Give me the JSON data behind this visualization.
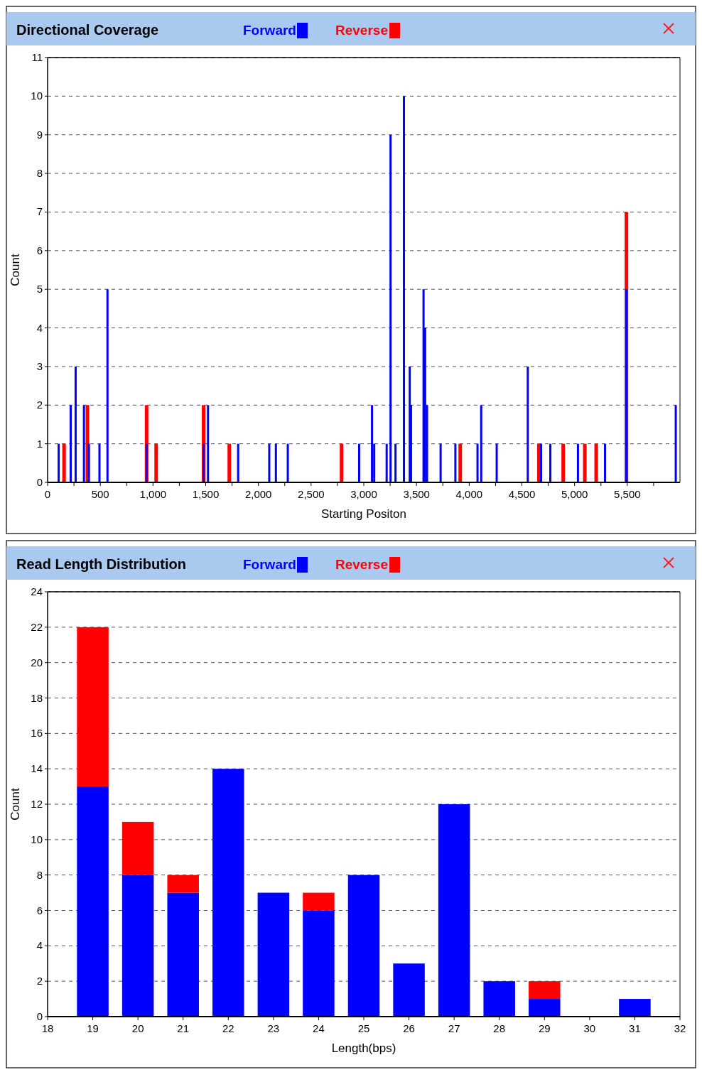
{
  "chart_data": [
    {
      "type": "bar",
      "title": "Directional Coverage",
      "xlabel": "Starting Positon",
      "ylabel": "Count",
      "legend": "top",
      "grid": "y",
      "xlim": [
        0,
        6000
      ],
      "xticks": [
        0,
        {
          "value": 250,
          "label": null
        },
        500,
        {
          "value": 750,
          "label": null
        },
        {
          "value": 1000,
          "label": "1,000"
        },
        {
          "value": 1250,
          "label": null
        },
        {
          "value": 1500,
          "label": "1,500"
        },
        {
          "value": 1750,
          "label": null
        },
        {
          "value": 2000,
          "label": "2,000"
        },
        {
          "value": 2250,
          "label": null
        },
        {
          "value": 2500,
          "label": "2,500"
        },
        {
          "value": 2750,
          "label": null
        },
        {
          "value": 3000,
          "label": "3,000"
        },
        {
          "value": 3250,
          "label": null
        },
        {
          "value": 3500,
          "label": "3,500"
        },
        {
          "value": 3750,
          "label": null
        },
        {
          "value": 4000,
          "label": "4,000"
        },
        {
          "value": 4250,
          "label": null
        },
        {
          "value": 4500,
          "label": "4,500"
        },
        {
          "value": 4750,
          "label": null
        },
        {
          "value": 5000,
          "label": "5,000"
        },
        {
          "value": 5250,
          "label": null
        },
        {
          "value": 5500,
          "label": "5,500"
        },
        {
          "value": 5750,
          "label": null
        }
      ],
      "ylim": [
        0,
        11
      ],
      "yticks": [
        0,
        1,
        2,
        3,
        4,
        5,
        6,
        7,
        8,
        9,
        10,
        11
      ],
      "series": [
        {
          "name": "Forward",
          "color": "#0000ff",
          "x": [
            105,
            219,
            266,
            345,
            392,
            492,
            568,
            939,
            1480,
            1522,
            1808,
            2103,
            2166,
            2279,
            2956,
            3078,
            3099,
            3217,
            3254,
            3301,
            3381,
            3436,
            3448,
            3567,
            3582,
            3600,
            3729,
            3869,
            4079,
            4114,
            4261,
            4556,
            4682,
            4770,
            5032,
            5289,
            5492,
            5960
          ],
          "values": [
            1,
            2,
            3,
            2,
            1,
            1,
            5,
            1,
            1,
            2,
            1,
            1,
            1,
            1,
            1,
            2,
            1,
            1,
            9,
            1,
            10,
            3,
            2,
            5,
            4,
            2,
            1,
            1,
            1,
            2,
            1,
            3,
            1,
            1,
            1,
            1,
            5,
            2
          ]
        },
        {
          "name": "Reverse",
          "color": "#ff0000",
          "x": [
            156,
            378,
            939,
            1030,
            1480,
            1724,
            2789,
            3915,
            4662,
            4892,
            5097,
            5205,
            5492
          ],
          "values": [
            1,
            2,
            2,
            1,
            2,
            1,
            1,
            1,
            1,
            1,
            1,
            1,
            7
          ]
        }
      ]
    },
    {
      "type": "bar",
      "title": "Read Length Distribution",
      "xlabel": "Length(bps)",
      "ylabel": "Count",
      "legend": "top",
      "grid": "y",
      "stacked": true,
      "xlim": [
        18,
        32
      ],
      "xticks": [
        18,
        19,
        20,
        21,
        22,
        23,
        24,
        25,
        26,
        27,
        28,
        29,
        30,
        31,
        32
      ],
      "ylim": [
        0,
        24
      ],
      "yticks": [
        0,
        2,
        4,
        6,
        8,
        10,
        12,
        14,
        16,
        18,
        20,
        22,
        24
      ],
      "series": [
        {
          "name": "Forward",
          "color": "#0000ff",
          "x": [
            19,
            20,
            21,
            22,
            23,
            24,
            25,
            26,
            27,
            28,
            29,
            30,
            31
          ],
          "values": [
            13,
            8,
            7,
            14,
            7,
            6,
            8,
            3,
            12,
            2,
            1,
            0,
            1
          ]
        },
        {
          "name": "Reverse",
          "color": "#ff0000",
          "x": [
            19,
            20,
            21,
            22,
            23,
            24,
            25,
            26,
            27,
            28,
            29,
            30,
            31
          ],
          "values": [
            9,
            3,
            1,
            0,
            0,
            1,
            0,
            0,
            0,
            0,
            1,
            0,
            0
          ]
        }
      ]
    }
  ]
}
